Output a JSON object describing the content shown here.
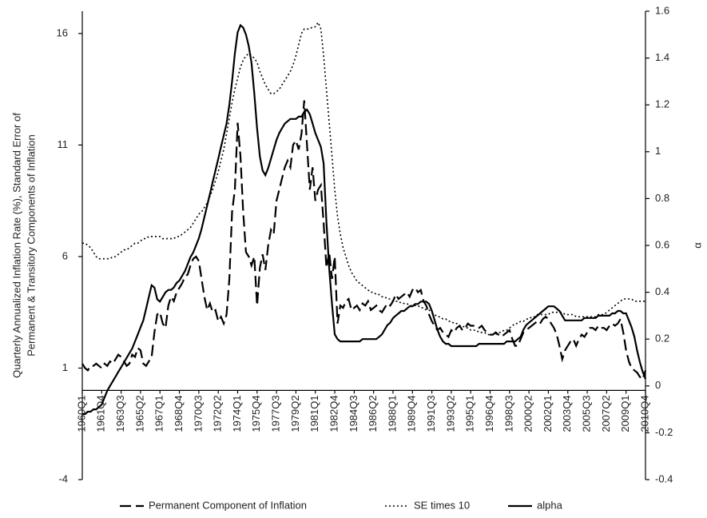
{
  "chart_data": {
    "type": "line",
    "ylabel": [
      "Quarterly Annualized Inflation Rate (%), Standard Error of",
      "Permanent & Transitory Components of Inflation"
    ],
    "y2label": "α",
    "ylim": [
      -4,
      17
    ],
    "yticks": [
      -4,
      1,
      6,
      11,
      16
    ],
    "y2lim": [
      -0.4,
      1.6
    ],
    "y2ticks": [
      -0.4,
      -0.2,
      0,
      0.2,
      0.4,
      0.6,
      0.8,
      1,
      1.2,
      1.4,
      1.6
    ],
    "categories": [
      "1960Q1",
      null,
      null,
      null,
      null,
      null,
      null,
      "1961Q4",
      null,
      null,
      null,
      null,
      null,
      null,
      "1963Q3",
      null,
      null,
      null,
      null,
      null,
      null,
      "1965Q2",
      null,
      null,
      null,
      null,
      null,
      null,
      "1967Q1",
      null,
      null,
      null,
      null,
      null,
      null,
      "1968Q4",
      null,
      null,
      null,
      null,
      null,
      null,
      "1970Q3",
      null,
      null,
      null,
      null,
      null,
      null,
      "1972Q2",
      null,
      null,
      null,
      null,
      null,
      null,
      "1974Q1",
      null,
      null,
      null,
      null,
      null,
      null,
      "1975Q4",
      null,
      null,
      null,
      null,
      null,
      null,
      "1977Q3",
      null,
      null,
      null,
      null,
      null,
      null,
      "1979Q2",
      null,
      null,
      null,
      null,
      null,
      null,
      "1981Q1",
      null,
      null,
      null,
      null,
      null,
      null,
      "1982Q4",
      null,
      null,
      null,
      null,
      null,
      null,
      "1984Q3",
      null,
      null,
      null,
      null,
      null,
      null,
      "1986Q2",
      null,
      null,
      null,
      null,
      null,
      null,
      "1988Q1",
      null,
      null,
      null,
      null,
      null,
      null,
      "1989Q4",
      null,
      null,
      null,
      null,
      null,
      null,
      "1991Q3",
      null,
      null,
      null,
      null,
      null,
      null,
      "1993Q2",
      null,
      null,
      null,
      null,
      null,
      null,
      "1995Q1",
      null,
      null,
      null,
      null,
      null,
      null,
      "1996Q4",
      null,
      null,
      null,
      null,
      null,
      null,
      "1998Q3",
      null,
      null,
      null,
      null,
      null,
      null,
      "2000Q2",
      null,
      null,
      null,
      null,
      null,
      null,
      "2002Q1",
      null,
      null,
      null,
      null,
      null,
      null,
      "2003Q4",
      null,
      null,
      null,
      null,
      null,
      null,
      "2005Q3",
      null,
      null,
      null,
      null,
      null,
      null,
      "2007Q2",
      null,
      null,
      null,
      null,
      null,
      null,
      "2009Q1",
      null,
      null,
      null,
      null,
      null,
      null,
      "2010Q4"
    ],
    "series": [
      {
        "name": "Permanent Component of Inflation",
        "color": "#000000",
        "dash": "dashed",
        "axis": "y",
        "values": [
          1.2,
          1.0,
          0.9,
          1.1,
          1.1,
          1.2,
          1.1,
          1.0,
          1.2,
          1.1,
          1.3,
          1.2,
          1.4,
          1.6,
          1.5,
          1.3,
          1.1,
          1.2,
          1.6,
          1.5,
          1.9,
          1.8,
          1.2,
          1.1,
          1.3,
          1.5,
          2.6,
          3.4,
          3.5,
          3.0,
          2.8,
          3.8,
          4.2,
          4.0,
          4.4,
          4.6,
          4.8,
          5.1,
          5.2,
          5.6,
          5.9,
          6.0,
          5.8,
          5.0,
          4.2,
          3.6,
          3.9,
          3.5,
          3.6,
          3.1,
          3.3,
          3.0,
          3.4,
          5.0,
          8.0,
          9.0,
          12.0,
          10.5,
          8.0,
          6.2,
          6.0,
          5.6,
          6.0,
          3.8,
          5.5,
          6.1,
          5.4,
          6.5,
          7.2,
          7.0,
          8.5,
          9.0,
          9.5,
          10.0,
          10.3,
          10.0,
          11.0,
          11.2,
          10.8,
          11.5,
          13.0,
          11.0,
          9.0,
          10.0,
          8.5,
          9.0,
          9.2,
          7.5,
          5.5,
          6.2,
          5.0,
          6.0,
          3.0,
          3.8,
          3.7,
          4.0,
          4.1,
          3.6,
          3.7,
          3.8,
          3.6,
          3.9,
          3.8,
          4.0,
          3.6,
          3.7,
          3.8,
          3.6,
          3.5,
          3.7,
          3.9,
          3.8,
          4.0,
          4.3,
          4.1,
          4.2,
          4.3,
          4.4,
          4.2,
          4.5,
          4.6,
          4.4,
          4.5,
          4.0,
          3.8,
          3.4,
          3.1,
          2.9,
          2.7,
          2.8,
          2.6,
          2.5,
          2.4,
          2.7,
          2.6,
          2.8,
          2.9,
          2.7,
          2.8,
          3.0,
          2.9,
          2.9,
          2.8,
          2.8,
          2.9,
          2.7,
          2.6,
          2.5,
          2.5,
          2.6,
          2.5,
          2.4,
          2.5,
          2.6,
          2.7,
          2.3,
          2.0,
          2.0,
          2.3,
          2.6,
          2.7,
          2.8,
          2.9,
          3.0,
          3.1,
          3.0,
          3.2,
          3.3,
          3.2,
          3.0,
          2.8,
          2.5,
          2.0,
          1.4,
          1.8,
          2.0,
          2.2,
          2.3,
          2.0,
          2.3,
          2.5,
          2.4,
          2.6,
          2.8,
          2.8,
          2.7,
          2.9,
          2.8,
          2.8,
          2.7,
          2.9,
          3.0,
          2.9,
          3.0,
          3.2,
          2.6,
          1.8,
          1.3,
          1.0,
          0.9,
          0.8,
          0.6,
          0.5,
          0.9
        ]
      },
      {
        "name": "SE times 10",
        "color": "#000000",
        "dash": "dotted",
        "axis": "y",
        "values": [
          6.6,
          6.6,
          6.5,
          6.4,
          6.2,
          6.0,
          5.9,
          5.9,
          5.9,
          5.9,
          5.9,
          6.0,
          6.0,
          6.1,
          6.2,
          6.3,
          6.3,
          6.4,
          6.5,
          6.6,
          6.6,
          6.7,
          6.8,
          6.8,
          6.9,
          6.9,
          6.9,
          6.9,
          6.9,
          6.8,
          6.8,
          6.8,
          6.8,
          6.8,
          6.9,
          6.9,
          7.0,
          7.1,
          7.2,
          7.3,
          7.5,
          7.7,
          7.9,
          8.0,
          8.2,
          8.4,
          8.7,
          9.0,
          9.4,
          9.8,
          10.3,
          10.8,
          11.5,
          12.2,
          12.9,
          13.5,
          14.0,
          14.5,
          14.8,
          15.0,
          15.1,
          15.0,
          14.9,
          14.7,
          14.3,
          14.0,
          13.7,
          13.5,
          13.3,
          13.3,
          13.4,
          13.5,
          13.7,
          13.9,
          14.1,
          14.3,
          14.6,
          15.0,
          15.5,
          16.0,
          16.2,
          16.2,
          16.2,
          16.3,
          16.3,
          16.5,
          16.2,
          15.0,
          13.5,
          12.0,
          10.5,
          9.0,
          7.8,
          7.0,
          6.4,
          6.0,
          5.6,
          5.3,
          5.1,
          4.9,
          4.8,
          4.7,
          4.6,
          4.5,
          4.4,
          4.4,
          4.3,
          4.3,
          4.2,
          4.2,
          4.1,
          4.1,
          4.0,
          4.0,
          4.0,
          3.9,
          3.9,
          3.9,
          3.8,
          3.8,
          3.8,
          3.8,
          3.7,
          3.7,
          3.6,
          3.6,
          3.5,
          3.4,
          3.3,
          3.3,
          3.2,
          3.2,
          3.1,
          3.1,
          3.0,
          3.0,
          2.9,
          2.9,
          2.8,
          2.8,
          2.7,
          2.7,
          2.7,
          2.6,
          2.6,
          2.6,
          2.5,
          2.5,
          2.5,
          2.5,
          2.6,
          2.6,
          2.7,
          2.7,
          2.8,
          2.9,
          3.0,
          3.0,
          3.1,
          3.1,
          3.2,
          3.2,
          3.3,
          3.3,
          3.4,
          3.4,
          3.4,
          3.4,
          3.4,
          3.5,
          3.5,
          3.5,
          3.5,
          3.5,
          3.4,
          3.4,
          3.4,
          3.4,
          3.3,
          3.3,
          3.3,
          3.3,
          3.3,
          3.3,
          3.3,
          3.3,
          3.4,
          3.4,
          3.4,
          3.5,
          3.6,
          3.7,
          3.8,
          3.9,
          4.0,
          4.1,
          4.1,
          4.1,
          4.1,
          4.0,
          4.0,
          4.0,
          4.0,
          4.0
        ]
      },
      {
        "name": "alpha",
        "color": "#000000",
        "dash": "solid",
        "axis": "y2",
        "values": [
          -0.12,
          -0.12,
          -0.11,
          -0.11,
          -0.1,
          -0.1,
          -0.09,
          -0.08,
          -0.05,
          -0.02,
          0.0,
          0.02,
          0.04,
          0.06,
          0.08,
          0.1,
          0.12,
          0.14,
          0.16,
          0.19,
          0.22,
          0.25,
          0.28,
          0.33,
          0.38,
          0.43,
          0.42,
          0.37,
          0.36,
          0.38,
          0.4,
          0.41,
          0.41,
          0.42,
          0.44,
          0.45,
          0.47,
          0.49,
          0.52,
          0.55,
          0.57,
          0.6,
          0.63,
          0.67,
          0.72,
          0.77,
          0.82,
          0.87,
          0.92,
          0.97,
          1.02,
          1.07,
          1.12,
          1.2,
          1.3,
          1.42,
          1.51,
          1.54,
          1.53,
          1.5,
          1.45,
          1.38,
          1.25,
          1.1,
          0.98,
          0.92,
          0.9,
          0.93,
          0.97,
          1.01,
          1.05,
          1.08,
          1.1,
          1.12,
          1.13,
          1.14,
          1.14,
          1.14,
          1.15,
          1.15,
          1.17,
          1.18,
          1.16,
          1.12,
          1.08,
          1.05,
          1.02,
          0.95,
          0.7,
          0.5,
          0.35,
          0.22,
          0.2,
          0.19,
          0.19,
          0.19,
          0.19,
          0.19,
          0.19,
          0.19,
          0.19,
          0.2,
          0.2,
          0.2,
          0.2,
          0.2,
          0.2,
          0.21,
          0.22,
          0.24,
          0.26,
          0.27,
          0.29,
          0.3,
          0.31,
          0.32,
          0.32,
          0.33,
          0.34,
          0.34,
          0.35,
          0.35,
          0.36,
          0.36,
          0.36,
          0.35,
          0.32,
          0.28,
          0.24,
          0.21,
          0.19,
          0.18,
          0.18,
          0.17,
          0.17,
          0.17,
          0.17,
          0.17,
          0.17,
          0.17,
          0.17,
          0.17,
          0.17,
          0.18,
          0.18,
          0.18,
          0.18,
          0.18,
          0.18,
          0.18,
          0.18,
          0.18,
          0.18,
          0.19,
          0.19,
          0.19,
          0.19,
          0.2,
          0.21,
          0.24,
          0.26,
          0.27,
          0.28,
          0.29,
          0.3,
          0.31,
          0.32,
          0.33,
          0.34,
          0.34,
          0.34,
          0.33,
          0.32,
          0.3,
          0.28,
          0.28,
          0.28,
          0.28,
          0.28,
          0.28,
          0.28,
          0.29,
          0.29,
          0.29,
          0.29,
          0.29,
          0.3,
          0.3,
          0.3,
          0.3,
          0.3,
          0.31,
          0.31,
          0.32,
          0.32,
          0.31,
          0.31,
          0.28,
          0.25,
          0.21,
          0.15,
          0.1,
          0.06,
          0.03
        ]
      }
    ],
    "legend": "bottom"
  }
}
